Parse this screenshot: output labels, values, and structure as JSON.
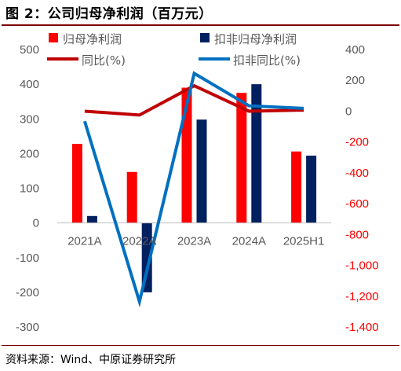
{
  "title": "图 2：公司归母净利润（百万元）",
  "source": "资料来源：Wind、中原证券研究所",
  "chart_data": {
    "type": "bar+line",
    "categories": [
      "2021A",
      "2022A",
      "2023A",
      "2024A",
      "2025H1"
    ],
    "bar_series": [
      {
        "name": "归母净利润",
        "color": "#ff0000",
        "axis": "left",
        "values": [
          228,
          147,
          390,
          375,
          206
        ]
      },
      {
        "name": "扣非归母净利润",
        "color": "#002060",
        "axis": "left",
        "values": [
          20,
          -200,
          298,
          400,
          194
        ]
      }
    ],
    "line_series": [
      {
        "name": "同比(%)",
        "color": "#c00000",
        "axis": "right",
        "values": [
          0,
          -25,
          165,
          0,
          7
        ]
      },
      {
        "name": "扣非同比(%)",
        "color": "#0070c0",
        "axis": "right",
        "values": [
          -65,
          -1235,
          245,
          35,
          18
        ]
      }
    ],
    "left_axis": {
      "range": [
        -300,
        500
      ],
      "ticks": [
        500,
        400,
        300,
        200,
        100,
        0,
        -100,
        -200,
        -300
      ],
      "color": "#595959"
    },
    "right_axis": {
      "range": [
        -1400,
        400
      ],
      "ticks": [
        400,
        200,
        0,
        -200,
        -400,
        -600,
        -800,
        -1000,
        -1200,
        -1400
      ],
      "tick_labels": [
        "400",
        "200",
        "0",
        "-200",
        "-400",
        "-600",
        "-800",
        "-1,000",
        "-1,200",
        "-1,400"
      ],
      "positive_color": "#595959",
      "negative_color": "#ff0000"
    },
    "legend_position": "top",
    "grid": false
  }
}
